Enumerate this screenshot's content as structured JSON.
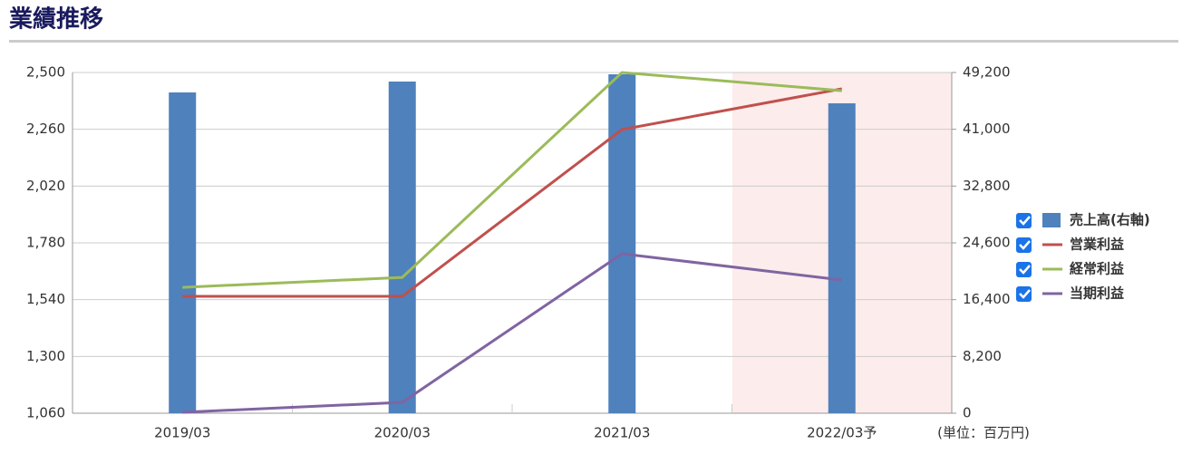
{
  "chart_data": {
    "type": "combo",
    "title": "業績推移",
    "unit_note": "(単位：百万円)",
    "categories": [
      "2019/03",
      "2020/03",
      "2021/03",
      "2022/03予"
    ],
    "ylim": [
      1060,
      2500
    ],
    "yticks": [
      {
        "value": 1060,
        "label": "1,060"
      },
      {
        "value": 1300,
        "label": "1,300"
      },
      {
        "value": 1540,
        "label": "1,540"
      },
      {
        "value": 1780,
        "label": "1,780"
      },
      {
        "value": 2020,
        "label": "2,020"
      },
      {
        "value": 2260,
        "label": "2,260"
      },
      {
        "value": 2500,
        "label": "2,500"
      }
    ],
    "y2lim": [
      0,
      49200
    ],
    "y2ticks": [
      0,
      {
        "value": 8200,
        "label": "8,200"
      },
      {
        "value": 16400,
        "label": "16,400"
      },
      {
        "value": 24600,
        "label": "24,600"
      },
      {
        "value": 32800,
        "label": "32,800"
      },
      {
        "value": 41000,
        "label": "41,000"
      },
      {
        "value": 49200,
        "label": "49,200"
      }
    ],
    "grid": true,
    "series": [
      {
        "name": "売上高(右軸)",
        "type": "bar",
        "axis": "y2",
        "color": "#4f81bd",
        "values": [
          46320,
          47890,
          48940,
          44750
        ]
      },
      {
        "name": "営業利益",
        "type": "line",
        "color": "#c0504d",
        "values": [
          1554,
          1554,
          2259,
          2431
        ]
      },
      {
        "name": "経常利益",
        "type": "line",
        "color": "#9bbb59",
        "values": [
          1592,
          1634,
          2500,
          2423
        ]
      },
      {
        "name": "当期利益",
        "type": "line",
        "color": "#8064a2",
        "values": [
          1064,
          1106,
          1734,
          1623
        ]
      }
    ]
  }
}
